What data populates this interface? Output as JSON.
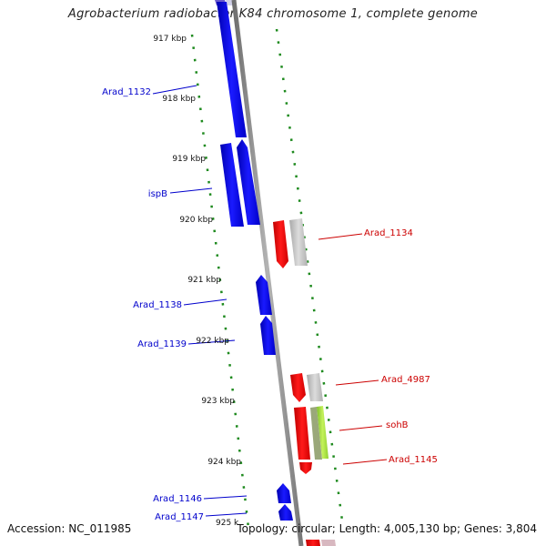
{
  "title": "Agrobacterium radiobacter K84 chromosome 1, complete genome",
  "footer": {
    "accession": "Accession: NC_011985",
    "summary": "Topology: circular; Length: 4,005,130 bp; Genes: 3,804"
  },
  "ticks": [
    "917 kbp",
    "918 kbp",
    "919 kbp",
    "920 kbp",
    "921 kbp",
    "922 kbp",
    "923 kbp",
    "924 kbp",
    "925 k"
  ],
  "colors": {
    "forward_gene": "#0000ee",
    "reverse_gene": "#ee0000",
    "gray_gene": "#bcbcbc",
    "green_gene": "#a6e03a",
    "backbone": "#8c8c8c",
    "tick_green": "#228b22",
    "label_blue": "#0000cc",
    "label_red": "#cc0000"
  },
  "labels_left": [
    "Arad_1132",
    "ispB",
    "Arad_1138",
    "Arad_1139",
    "Arad_1146",
    "Arad_1147"
  ],
  "labels_right": [
    "Arad_1134",
    "Arad_4987",
    "sohB",
    "Arad_1145"
  ]
}
